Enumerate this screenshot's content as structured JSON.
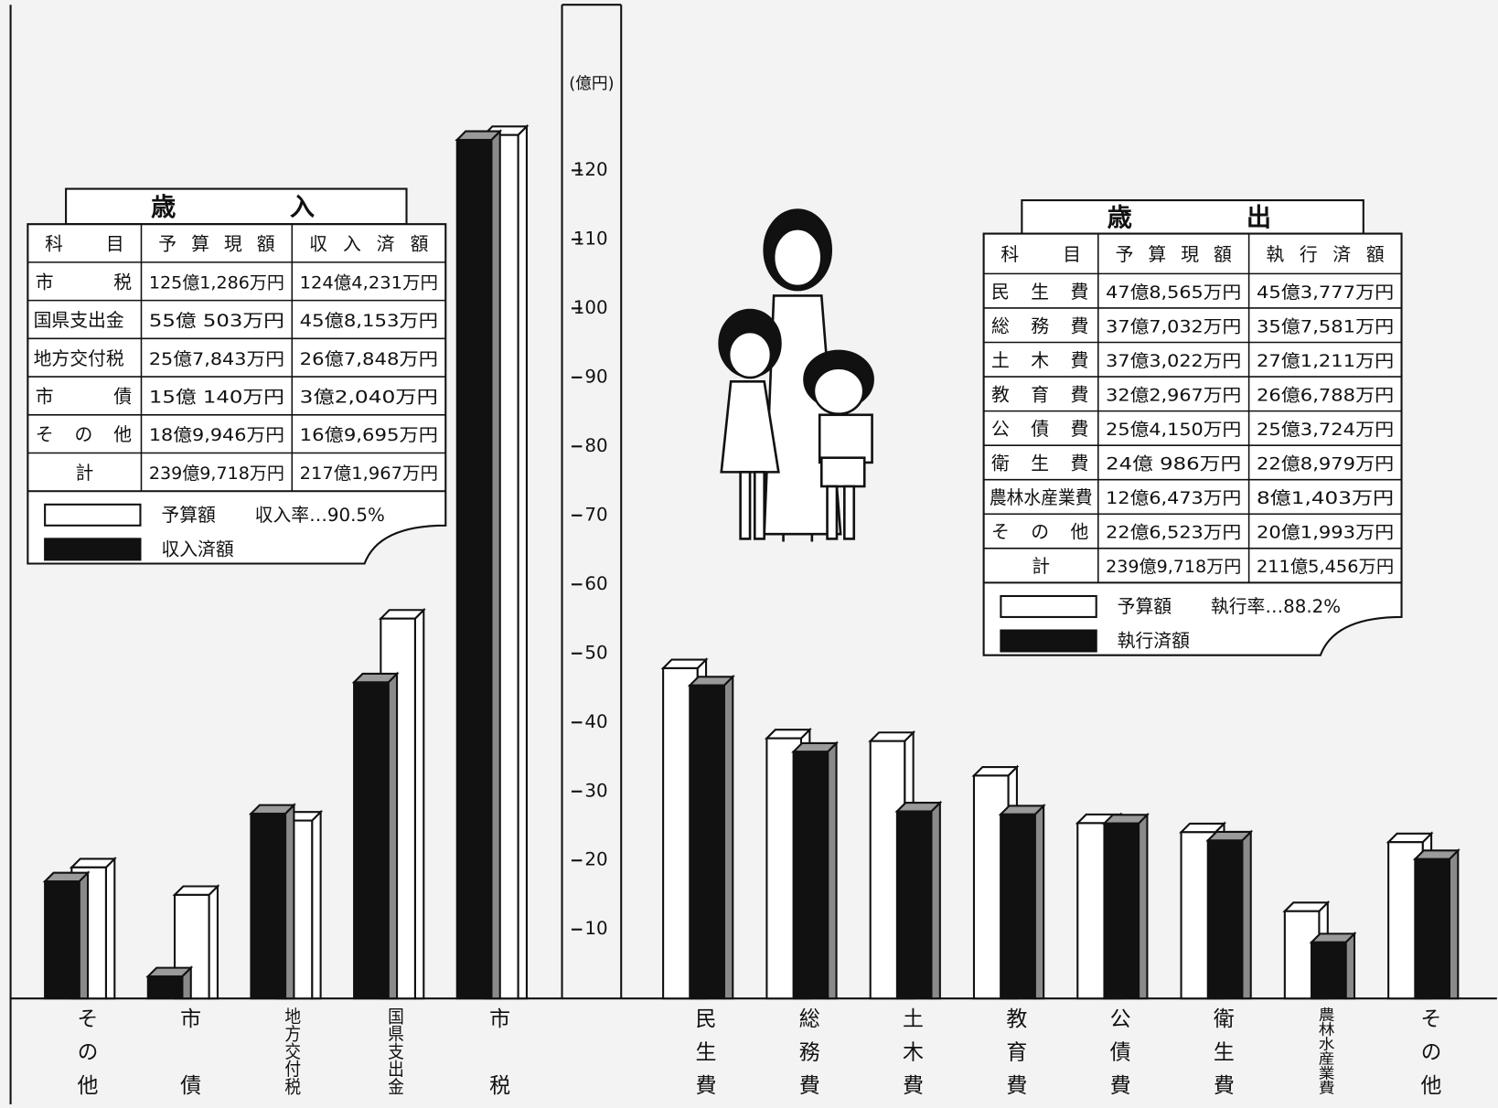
{
  "chart_data": [
    {
      "type": "bar",
      "title": "歳入",
      "y_unit": "(億円)",
      "ylim": [
        0,
        144
      ],
      "yticks": [
        10,
        20,
        30,
        40,
        50,
        60,
        70,
        80,
        90,
        100,
        110,
        120
      ],
      "grid": false,
      "categories": [
        "その他",
        "市債",
        "地方交付税",
        "国県支出金",
        "市税"
      ],
      "series": [
        {
          "name": "予算額",
          "color": "#ffffff",
          "values": [
            18.9946,
            15.014,
            25.7843,
            55.0503,
            125.1286
          ]
        },
        {
          "name": "収入済額",
          "color": "#111111",
          "values": [
            16.9695,
            3.204,
            26.7848,
            45.8153,
            124.4231
          ]
        }
      ],
      "rate_label": "収入率…90.5%",
      "table": {
        "columns": [
          "科目",
          "予算現額",
          "収入済額"
        ],
        "rows": [
          [
            "市税",
            "125億1,286万円",
            "124億4,231万円"
          ],
          [
            "国県支出金",
            "55億 503万円",
            "45億8,153万円"
          ],
          [
            "地方交付税",
            "25億7,843万円",
            "26億7,848万円"
          ],
          [
            "市債",
            "15億 140万円",
            "3億2,040万円"
          ],
          [
            "その他",
            "18億9,946万円",
            "16億9,695万円"
          ],
          [
            "計",
            "239億9,718万円",
            "217億1,967万円"
          ]
        ]
      }
    },
    {
      "type": "bar",
      "title": "歳出",
      "categories": [
        "民生費",
        "総務費",
        "土木費",
        "教育費",
        "公債費",
        "衛生費",
        "農林水産業費",
        "その他"
      ],
      "series": [
        {
          "name": "予算額",
          "color": "#ffffff",
          "values": [
            47.8565,
            37.7032,
            37.3022,
            32.2967,
            25.415,
            24.0986,
            12.6473,
            22.6523
          ]
        },
        {
          "name": "執行済額",
          "color": "#111111",
          "values": [
            45.3777,
            35.7581,
            27.1211,
            26.6788,
            25.3724,
            22.8979,
            8.1403,
            20.1993
          ]
        }
      ],
      "rate_label": "執行率…88.2%",
      "table": {
        "columns": [
          "科目",
          "予算現額",
          "執行済額"
        ],
        "rows": [
          [
            "民生費",
            "47億8,565万円",
            "45億3,777万円"
          ],
          [
            "総務費",
            "37億7,032万円",
            "35億7,581万円"
          ],
          [
            "土木費",
            "37億3,022万円",
            "27億1,211万円"
          ],
          [
            "教育費",
            "32億2,967万円",
            "26億6,788万円"
          ],
          [
            "公債費",
            "25億4,150万円",
            "25億3,724万円"
          ],
          [
            "衛生費",
            "24億 986万円",
            "22億8,979万円"
          ],
          [
            "農林水産業費",
            "12億6,473万円",
            "8億1,403万円"
          ],
          [
            "その他",
            "22億6,523万円",
            "20億1,993万円"
          ],
          [
            "計",
            "239億9,718万円",
            "211億5,456万円"
          ]
        ]
      }
    }
  ]
}
